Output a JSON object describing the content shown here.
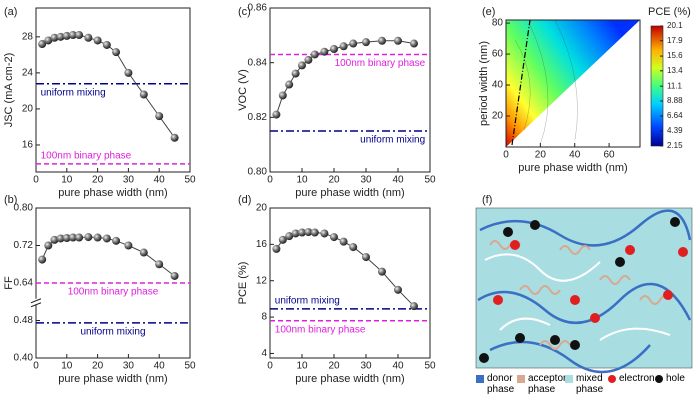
{
  "chart_data": [
    {
      "type": "line",
      "label": "(a)",
      "xlabel": "pure phase width (nm)",
      "ylabel": "JSC (mA cm-2)",
      "xlim": [
        0,
        50
      ],
      "xticks": [
        0,
        10,
        20,
        30,
        40,
        50
      ],
      "ylim": [
        13,
        31.2
      ],
      "yticks": [
        16,
        20,
        24,
        28
      ],
      "x": [
        2,
        4,
        6,
        8,
        10,
        12,
        14,
        17,
        20,
        23,
        26,
        30,
        35,
        40,
        45
      ],
      "series": [
        {
          "color": "#404040",
          "values": [
            27.2,
            27.6,
            27.9,
            28.0,
            28.1,
            28.2,
            28.2,
            27.9,
            27.6,
            27.1,
            26.3,
            24.0,
            21.6,
            19.2,
            16.8
          ]
        }
      ],
      "hlines": [
        {
          "label": "uniform mixing",
          "value": 22.8,
          "color": "#00008b",
          "dash": "dashdot"
        },
        {
          "label": "100nm binary phase",
          "value": 13.9,
          "color": "#e020e0",
          "dash": "dash"
        }
      ]
    },
    {
      "type": "line",
      "label": "(b)",
      "xlabel": "pure phase width (nm)",
      "ylabel": "FF",
      "xlim": [
        0,
        50
      ],
      "xticks": [
        0,
        10,
        20,
        30,
        40,
        50
      ],
      "ylim": [
        0.4,
        0.8
      ],
      "ybreak": [
        0.52,
        0.6
      ],
      "yticks": [
        {
          "value": 0.4,
          "label": "0.40"
        },
        0.48,
        0.64,
        0.72,
        {
          "value": 0.8,
          "label": "0.80"
        }
      ],
      "x": [
        2,
        4,
        6,
        8,
        10,
        12,
        14,
        17,
        20,
        23,
        26,
        30,
        35,
        40,
        45
      ],
      "series": [
        {
          "color": "#404040",
          "values": [
            0.69,
            0.72,
            0.732,
            0.735,
            0.736,
            0.737,
            0.737,
            0.738,
            0.737,
            0.735,
            0.73,
            0.72,
            0.705,
            0.68,
            0.655
          ]
        }
      ],
      "hlines": [
        {
          "label": "100nm binary phase",
          "value": 0.64,
          "color": "#e020e0",
          "dash": "dash"
        },
        {
          "label": "uniform mixing",
          "value": 0.475,
          "color": "#00008b",
          "dash": "dashdot"
        }
      ]
    },
    {
      "type": "line",
      "label": "(c)",
      "xlabel": "pure phase width (nm)",
      "ylabel": "VOC (V)",
      "xlim": [
        0,
        50
      ],
      "xticks": [
        0,
        10,
        20,
        30,
        40,
        50
      ],
      "ylim": [
        0.8,
        0.86
      ],
      "yticks": [
        {
          "value": 0.8,
          "label": "0.80"
        },
        0.82,
        0.84,
        0.86
      ],
      "x": [
        2,
        4,
        6,
        8,
        10,
        12,
        14,
        17,
        20,
        23,
        26,
        30,
        35,
        40,
        45
      ],
      "series": [
        {
          "color": "#404040",
          "values": [
            0.821,
            0.828,
            0.832,
            0.836,
            0.839,
            0.841,
            0.843,
            0.844,
            0.845,
            0.846,
            0.847,
            0.8475,
            0.848,
            0.848,
            0.847
          ]
        }
      ],
      "hlines": [
        {
          "label": "100nm binary phase",
          "value": 0.843,
          "color": "#e020e0",
          "dash": "dash"
        },
        {
          "label": "uniform mixing",
          "value": 0.815,
          "color": "#00008b",
          "dash": "dashdot"
        }
      ]
    },
    {
      "type": "line",
      "label": "(d)",
      "xlabel": "pure phase width (nm)",
      "ylabel": "PCE (%)",
      "xlim": [
        0,
        50
      ],
      "xticks": [
        0,
        10,
        20,
        30,
        40,
        50
      ],
      "ylim": [
        3.5,
        20
      ],
      "yticks": [
        4,
        8,
        12,
        16,
        20
      ],
      "x": [
        2,
        4,
        6,
        8,
        10,
        12,
        14,
        17,
        20,
        23,
        26,
        30,
        35,
        40,
        45
      ],
      "series": [
        {
          "color": "#404040",
          "values": [
            15.5,
            16.5,
            16.9,
            17.2,
            17.3,
            17.35,
            17.3,
            17.2,
            16.8,
            16.3,
            15.7,
            14.6,
            13.0,
            11.0,
            9.2
          ]
        }
      ],
      "hlines": [
        {
          "label": "uniform mixing",
          "value": 8.9,
          "color": "#00008b",
          "dash": "dashdot"
        },
        {
          "label": "100nm binary phase",
          "value": 7.6,
          "color": "#e020e0",
          "dash": "dash"
        }
      ]
    },
    {
      "type": "contour",
      "label": "(e)",
      "xlabel": "pure phase width (nm)",
      "ylabel": "period width (nm)",
      "xlim": [
        0,
        78
      ],
      "xticks": [
        0,
        20,
        40,
        60
      ],
      "ylim": [
        0,
        82
      ],
      "yticks": [
        20,
        40,
        60,
        80
      ],
      "colorbar_title": "PCE (%)",
      "clim": [
        2.15,
        20.1
      ],
      "colorbar_ticks": [
        20.1,
        17.9,
        15.6,
        13.4,
        11.1,
        8.88,
        6.64,
        4.39,
        2.15
      ]
    }
  ],
  "diagram": {
    "label": "(f)",
    "legend": [
      {
        "name": "donor phase",
        "color": "#3a6fc4"
      },
      {
        "name": "acceptor phase",
        "color": "#d8a890"
      },
      {
        "name": "mixed phase",
        "color": "#a8dde2"
      },
      {
        "name": "electron",
        "color": "#e02020"
      },
      {
        "name": "hole",
        "color": "#111111"
      }
    ]
  }
}
